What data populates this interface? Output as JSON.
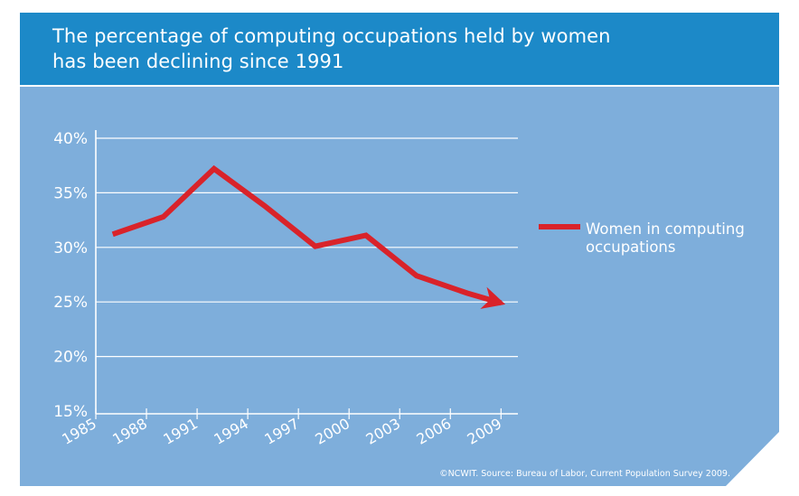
{
  "title": {
    "line1": "The percentage of computing occupations held by women",
    "line2": "has been declining since 1991"
  },
  "source": "©NCWIT. Source: Bureau of Labor, Current Population Survey 2009.",
  "colors": {
    "header": "#1c89c8",
    "panel": "#7eaedb",
    "line": "#d9232a",
    "axis_text": "#ffffff"
  },
  "chart_data": {
    "type": "line",
    "title": "The percentage of computing occupations held by women has been declining since 1991",
    "x_ticks": [
      1985,
      1988,
      1991,
      1994,
      1997,
      2000,
      2003,
      2006,
      2009
    ],
    "y_ticks": [
      "40%",
      "35%",
      "30%",
      "25%",
      "20%",
      "15%"
    ],
    "y_tick_values": [
      40,
      35,
      30,
      25,
      20,
      15
    ],
    "xlim": [
      1985,
      2010
    ],
    "ylim": [
      15,
      40
    ],
    "grid": true,
    "legend_position": "right",
    "series": [
      {
        "name": "Women in computing occupations",
        "legend_lines": [
          "Women in computing",
          "occupations"
        ],
        "x": [
          1986,
          1989,
          1992,
          1995,
          1998,
          2001,
          2004,
          2007,
          2009
        ],
        "y": [
          31.2,
          32.8,
          37.2,
          33.8,
          30.1,
          31.1,
          27.4,
          25.8,
          24.9
        ]
      }
    ]
  }
}
